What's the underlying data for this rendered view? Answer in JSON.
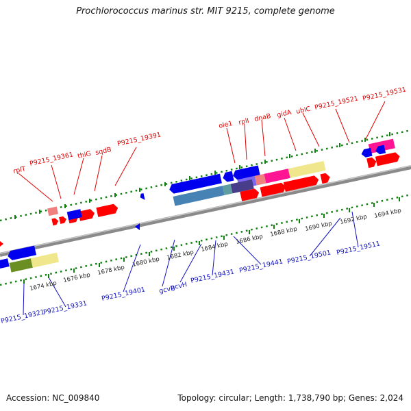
{
  "title": "Prochlorococcus marinus str. MIT 9215, complete genome",
  "footer": {
    "accession": "Accession: NC_009840",
    "summary": "Topology: circular; Length: 1,738,790 bp; Genes: 2,024"
  },
  "colors": {
    "background": "#ffffff",
    "backbone": "#808080",
    "forward_strand_genes": "#ff0000",
    "reverse_strand_genes": "#0000ee",
    "forward_labels": "#e00000",
    "reverse_labels": "#1010c0",
    "ticks": "#108010"
  },
  "scale_labels": [
    "1674 kbp",
    "1676 kbp",
    "1678 kbp",
    "1680 kbp",
    "1682 kbp",
    "1684 kbp",
    "1686 kbp",
    "1688 kbp",
    "1690 kbp",
    "1692 kbp",
    "1694 kbp"
  ],
  "forward_gene_labels": [
    "rplT",
    "P9215_19361",
    "thiG",
    "sqdB",
    "P9215_19391",
    "ole1",
    "rplI",
    "dnaB",
    "gidA",
    "ubiC",
    "P9215_19521",
    "P9215_19531"
  ],
  "reverse_gene_labels": [
    "P9215_19321",
    "P9215_19331",
    "P9215_19401",
    "gcvP",
    "gcvH",
    "P9215_19431",
    "P9215_19441",
    "P9215_19501",
    "P9215_19511"
  ]
}
